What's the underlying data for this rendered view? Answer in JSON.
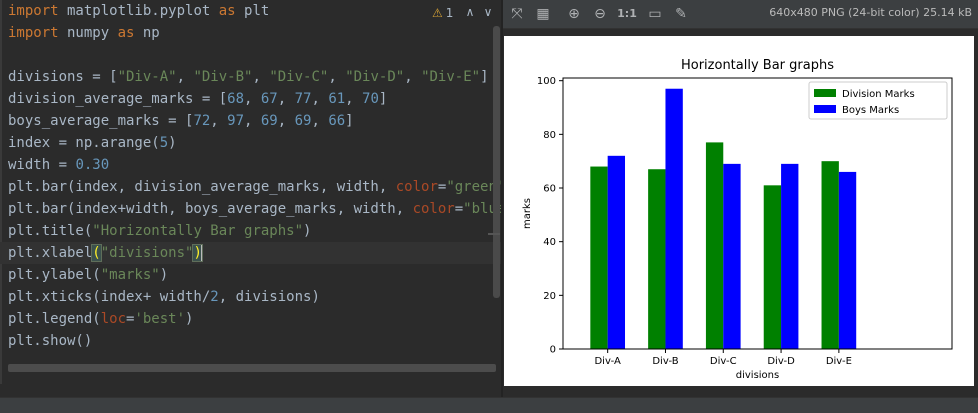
{
  "editor": {
    "warning_count": "1",
    "lines": [
      [
        [
          "kw",
          "import"
        ],
        [
          "t",
          " matplotlib.pyplot "
        ],
        [
          "kw",
          "as"
        ],
        [
          "t",
          " plt"
        ]
      ],
      [
        [
          "kw",
          "import"
        ],
        [
          "t",
          " numpy "
        ],
        [
          "kw",
          "as"
        ],
        [
          "t",
          " np"
        ]
      ],
      [],
      [
        [
          "t",
          "divisions = ["
        ],
        [
          "str",
          "\"Div-A\""
        ],
        [
          "t",
          ", "
        ],
        [
          "str",
          "\"Div-B\""
        ],
        [
          "t",
          ", "
        ],
        [
          "str",
          "\"Div-C\""
        ],
        [
          "t",
          ", "
        ],
        [
          "str",
          "\"Div-D\""
        ],
        [
          "t",
          ", "
        ],
        [
          "str",
          "\"Div-E\""
        ],
        [
          "t",
          "]"
        ]
      ],
      [
        [
          "t",
          "division_average_marks = ["
        ],
        [
          "num",
          "68"
        ],
        [
          "t",
          ", "
        ],
        [
          "num",
          "67"
        ],
        [
          "t",
          ", "
        ],
        [
          "num",
          "77"
        ],
        [
          "t",
          ", "
        ],
        [
          "num",
          "61"
        ],
        [
          "t",
          ", "
        ],
        [
          "num",
          "70"
        ],
        [
          "t",
          "]"
        ]
      ],
      [
        [
          "t",
          "boys_average_marks = ["
        ],
        [
          "num",
          "72"
        ],
        [
          "t",
          ", "
        ],
        [
          "num",
          "97"
        ],
        [
          "t",
          ", "
        ],
        [
          "num",
          "69"
        ],
        [
          "t",
          ", "
        ],
        [
          "num",
          "69"
        ],
        [
          "t",
          ", "
        ],
        [
          "num",
          "66"
        ],
        [
          "t",
          "]"
        ]
      ],
      [
        [
          "t",
          "index = np.arange("
        ],
        [
          "num",
          "5"
        ],
        [
          "t",
          ")"
        ]
      ],
      [
        [
          "t",
          "width = "
        ],
        [
          "num",
          "0.30"
        ]
      ],
      [
        [
          "t",
          "plt.bar(index, division_average_marks, width, "
        ],
        [
          "kwarg",
          "color"
        ],
        [
          "t",
          "="
        ],
        [
          "str",
          "\"green\""
        ],
        [
          "t",
          ", l"
        ]
      ],
      [
        [
          "t",
          "plt.bar(index+width, boys_average_marks, width, "
        ],
        [
          "kwarg",
          "color"
        ],
        [
          "t",
          "="
        ],
        [
          "str",
          "\"blue\""
        ],
        [
          "t",
          ","
        ]
      ],
      [
        [
          "t",
          "plt.title("
        ],
        [
          "str",
          "\"Horizontally Bar graphs\""
        ],
        [
          "t",
          ")"
        ]
      ],
      [
        [
          "t",
          "plt.xlabel"
        ],
        [
          "hl",
          "("
        ],
        [
          "str",
          "\"divisions\""
        ],
        [
          "hl",
          ")"
        ],
        [
          "caret",
          ""
        ]
      ],
      [
        [
          "t",
          "plt.ylabel("
        ],
        [
          "str",
          "\"marks\""
        ],
        [
          "t",
          ")"
        ]
      ],
      [
        [
          "t",
          "plt.xticks(index+ width/"
        ],
        [
          "num",
          "2"
        ],
        [
          "t",
          ", divisions)"
        ]
      ],
      [
        [
          "t",
          "plt.legend("
        ],
        [
          "kwarg",
          "loc"
        ],
        [
          "t",
          "="
        ],
        [
          "str",
          "'best'"
        ],
        [
          "t",
          ")"
        ]
      ],
      [
        [
          "t",
          "plt.show()"
        ]
      ]
    ]
  },
  "viewer": {
    "image_info": "640x480 PNG (24-bit color) 25.14 kB",
    "zoom_label": "1:1"
  },
  "chart_data": {
    "type": "bar",
    "title": "Horizontally Bar graphs",
    "xlabel": "divisions",
    "ylabel": "marks",
    "categories": [
      "Div-A",
      "Div-B",
      "Div-C",
      "Div-D",
      "Div-E"
    ],
    "series": [
      {
        "name": "Division Marks",
        "values": [
          68,
          67,
          77,
          61,
          70
        ],
        "color": "#008000"
      },
      {
        "name": "Boys Marks",
        "values": [
          72,
          97,
          69,
          69,
          66
        ],
        "color": "#0000ff"
      }
    ],
    "ylim": [
      0,
      101
    ],
    "yticks": [
      0,
      20,
      40,
      60,
      80,
      100
    ],
    "legend_position": "top-right",
    "grid": false
  }
}
